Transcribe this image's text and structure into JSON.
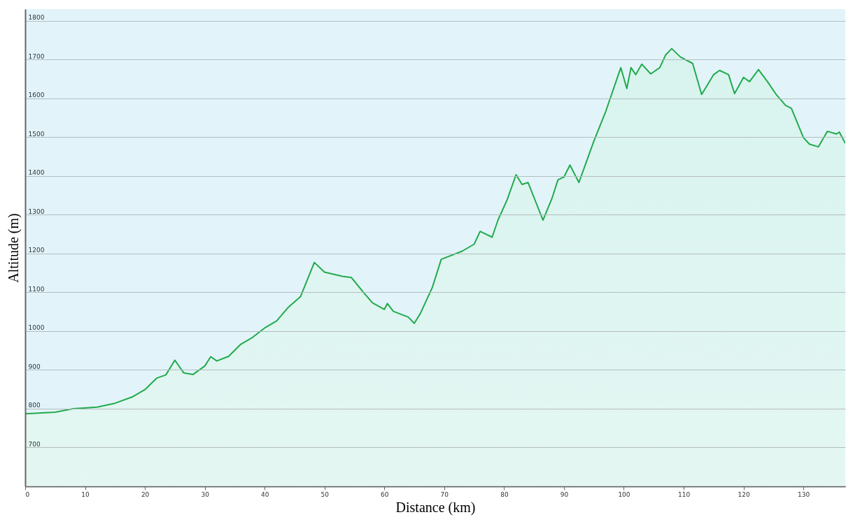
{
  "chart_data": {
    "type": "area",
    "xlabel": "Distance (km)",
    "ylabel": "Altitude (m)",
    "xlim": [
      0,
      137
    ],
    "xticks": [
      0,
      10,
      20,
      30,
      40,
      50,
      60,
      70,
      80,
      90,
      100,
      110,
      120,
      130
    ],
    "ylim": [
      600,
      1830
    ],
    "yticks": [
      700,
      800,
      900,
      1000,
      1100,
      1200,
      1300,
      1400,
      1500,
      1600,
      1700,
      1800
    ],
    "grid": "y",
    "x": [
      0,
      5,
      8,
      12,
      15,
      18,
      20,
      22,
      23.5,
      25,
      26.5,
      28,
      30,
      31,
      32,
      34,
      36,
      38,
      40,
      42,
      44,
      46,
      48.3,
      50,
      53,
      54.5,
      56.5,
      58,
      60,
      60.5,
      61.5,
      64,
      65,
      66,
      68,
      69.5,
      73,
      75,
      76,
      78,
      79,
      80.5,
      82,
      83,
      84,
      86.5,
      88,
      89,
      90,
      91,
      92.5,
      95,
      97,
      99,
      99.5,
      100.5,
      101.2,
      102,
      103,
      104.5,
      106,
      107,
      108,
      109.5,
      111.5,
      113,
      115,
      116,
      117.5,
      118.5,
      120,
      121,
      122.5,
      124,
      125.5,
      127,
      128,
      130,
      131,
      132.5,
      134,
      135.5,
      136,
      137
    ],
    "series": [
      {
        "color": "#22aa4c",
        "values": [
          787,
          791,
          800,
          804,
          814,
          831,
          849,
          879,
          887,
          925,
          892,
          888,
          910,
          934,
          923,
          935,
          966,
          984,
          1008,
          1026,
          1062,
          1089,
          1177,
          1152,
          1141,
          1138,
          1100,
          1073,
          1056,
          1071,
          1051,
          1036,
          1020,
          1045,
          1112,
          1185,
          1206,
          1224,
          1257,
          1242,
          1287,
          1338,
          1403,
          1378,
          1383,
          1286,
          1342,
          1390,
          1397,
          1428,
          1383,
          1490,
          1567,
          1657,
          1679,
          1625,
          1679,
          1661,
          1688,
          1663,
          1679,
          1712,
          1728,
          1706,
          1690,
          1610,
          1661,
          1672,
          1661,
          1612,
          1654,
          1643,
          1674,
          1643,
          1609,
          1582,
          1574,
          1499,
          1482,
          1475,
          1515,
          1508,
          1513,
          1484
        ]
      }
    ]
  }
}
